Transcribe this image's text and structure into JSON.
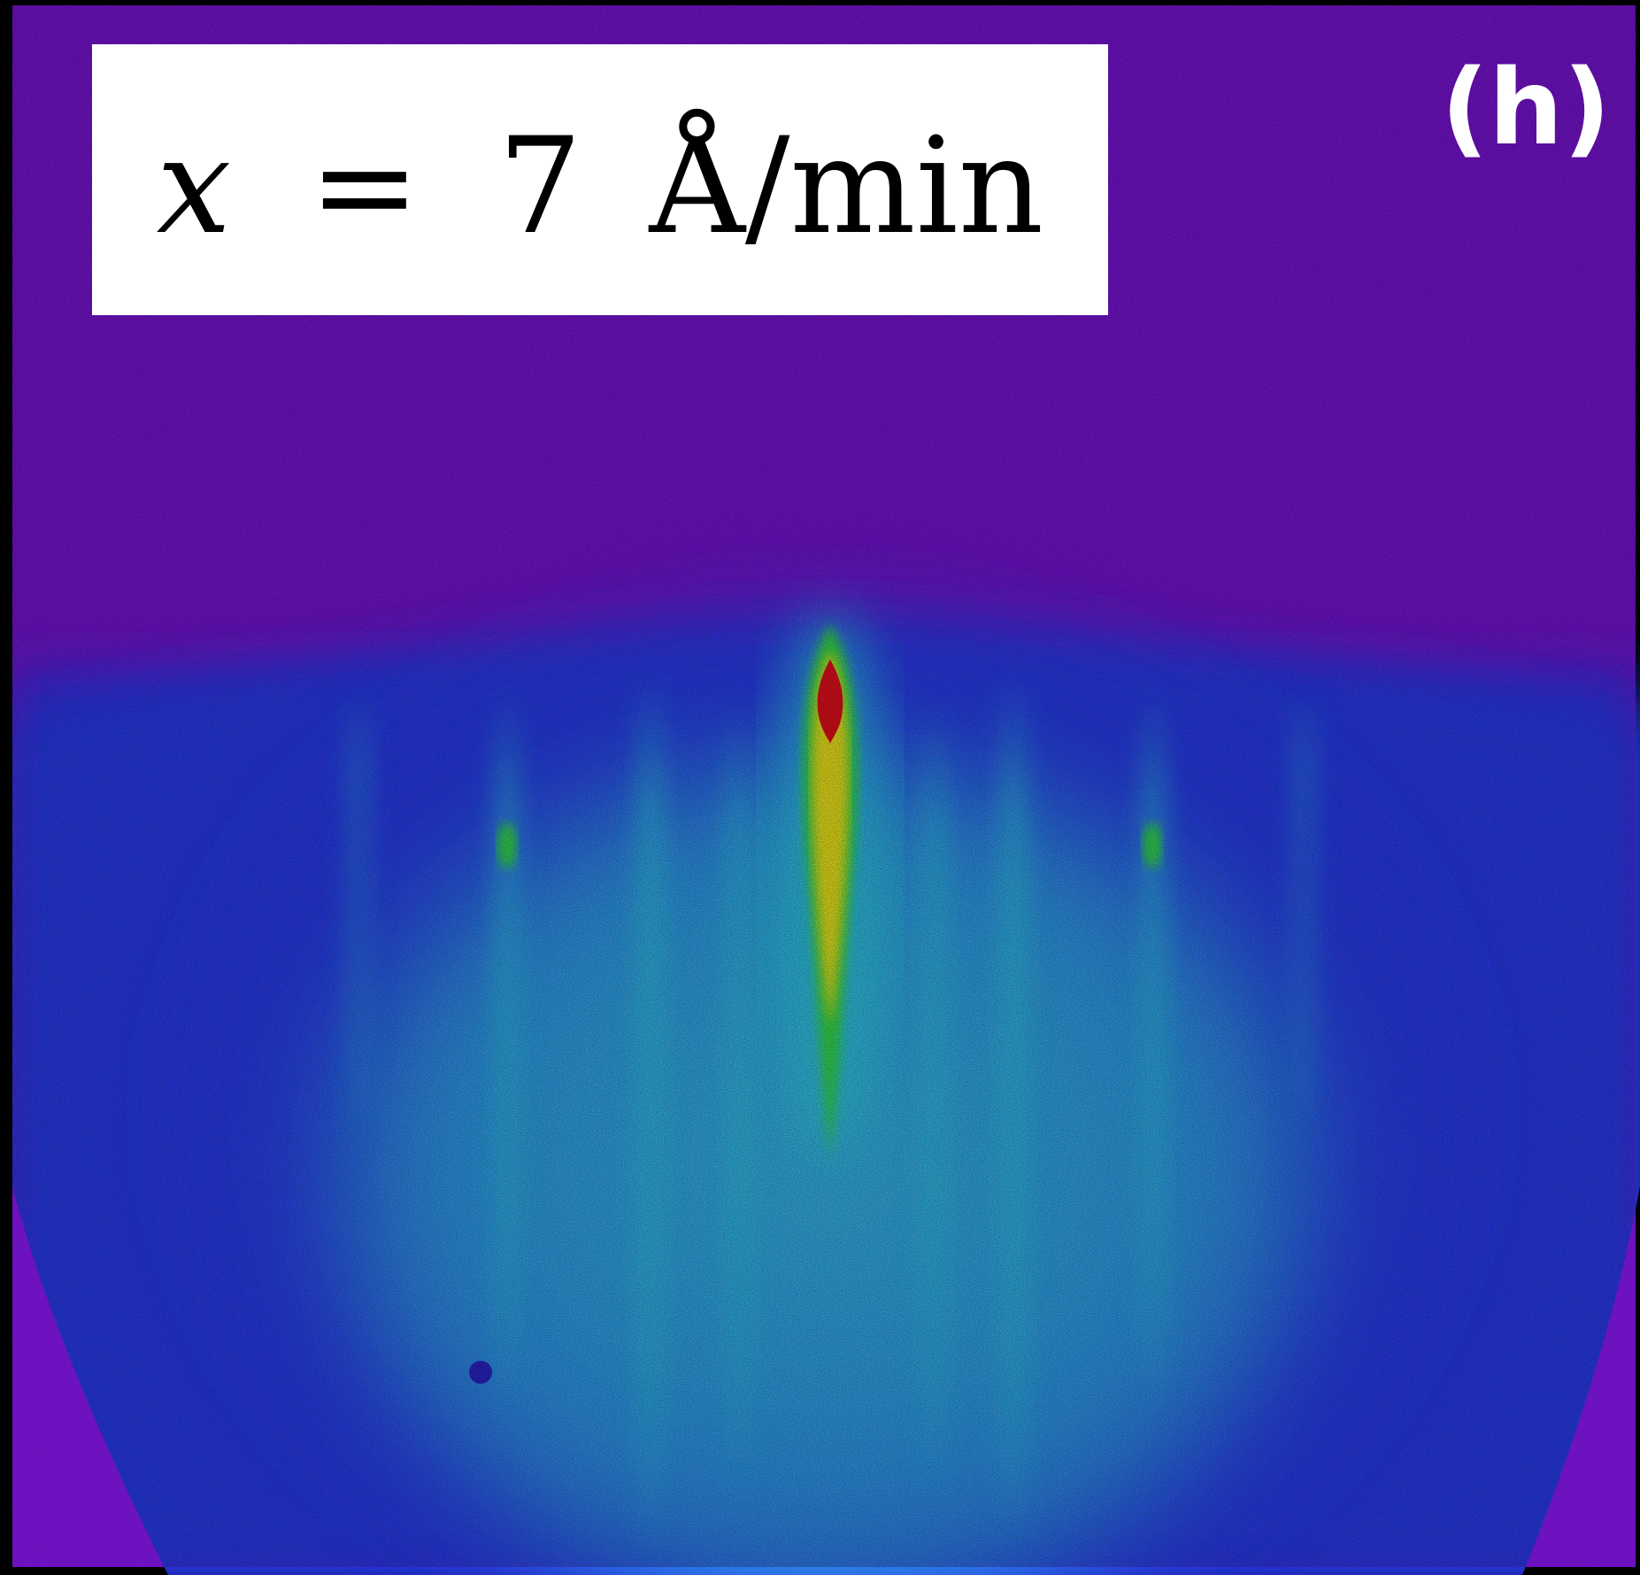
{
  "figure": {
    "panel_label": "(h)",
    "rate_label": {
      "variable": "x",
      "equals": "=",
      "value": "7",
      "unit": "Å/min"
    }
  },
  "colors": {
    "background_violet": "#7a14d6",
    "diffuse_blue": "#2a36f2",
    "streak_cyan": "#2fd6e8",
    "spot_green": "#35e04a",
    "spot_yellow": "#f2ea1c",
    "spot_red": "#e8101c",
    "panel_label_color": "#ffffff",
    "label_box_color": "#ffffff"
  }
}
